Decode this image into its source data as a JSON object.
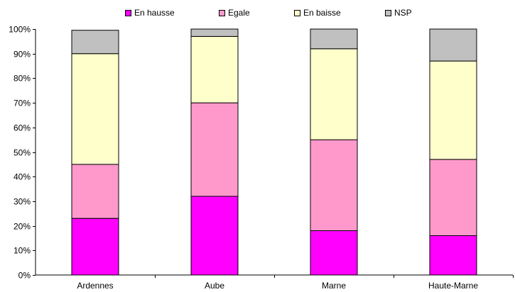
{
  "chart_data": {
    "type": "bar",
    "stacked": true,
    "categories": [
      "Ardennes",
      "Aube",
      "Marne",
      "Haute-Marne"
    ],
    "series": [
      {
        "name": "En hausse",
        "color": "#ff00ff",
        "values": [
          23,
          32,
          18,
          16
        ]
      },
      {
        "name": "Egale",
        "color": "#ff99cc",
        "values": [
          22,
          38,
          37,
          31
        ]
      },
      {
        "name": "En baisse",
        "color": "#ffffcc",
        "values": [
          45,
          27,
          37,
          40
        ]
      },
      {
        "name": "NSP",
        "color": "#c0c0c0",
        "values": [
          9.5,
          3,
          8,
          13
        ]
      }
    ],
    "ylim": [
      0,
      100
    ],
    "yticks": [
      "0%",
      "10%",
      "20%",
      "30%",
      "40%",
      "50%",
      "60%",
      "70%",
      "80%",
      "90%",
      "100%"
    ],
    "grid": false,
    "legend_position": "top"
  }
}
